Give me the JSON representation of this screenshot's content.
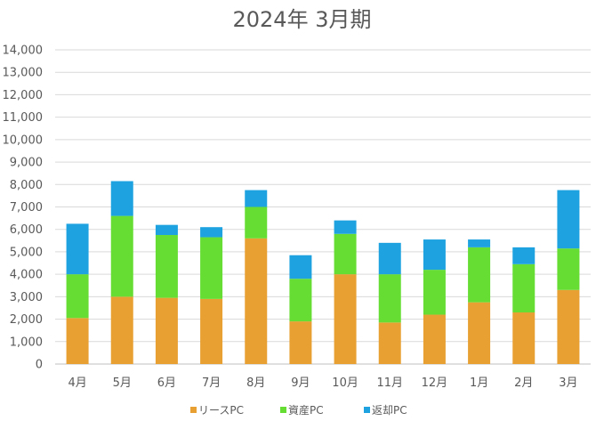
{
  "chart_data": {
    "type": "bar",
    "stacked": true,
    "title": "2024年 3月期",
    "xlabel": "",
    "ylabel": "",
    "ylim": [
      0,
      14000
    ],
    "yticks": [
      0,
      1000,
      2000,
      3000,
      4000,
      5000,
      6000,
      7000,
      8000,
      9000,
      10000,
      11000,
      12000,
      13000,
      14000
    ],
    "ytick_labels": [
      "0",
      "1,000",
      "2,000",
      "3,000",
      "4,000",
      "5,000",
      "6,000",
      "7,000",
      "8,000",
      "9,000",
      "10,000",
      "11,000",
      "12,000",
      "13,000",
      "14,000"
    ],
    "grid": true,
    "legend_position": "bottom",
    "categories": [
      "4月",
      "5月",
      "6月",
      "7月",
      "8月",
      "9月",
      "10月",
      "11月",
      "12月",
      "1月",
      "2月",
      "3月"
    ],
    "series": [
      {
        "name": "リースPC",
        "color": "#e8a033",
        "values": [
          2050,
          3000,
          2950,
          2900,
          5600,
          1900,
          4000,
          1850,
          2200,
          2750,
          2300,
          3300
        ]
      },
      {
        "name": "資産PC",
        "color": "#66dd33",
        "values": [
          1950,
          3600,
          2800,
          2750,
          1400,
          1900,
          1800,
          2150,
          2000,
          2450,
          2150,
          1850
        ]
      },
      {
        "name": "返却PC",
        "color": "#1ea3e0",
        "values": [
          2250,
          1550,
          450,
          450,
          750,
          1050,
          600,
          1400,
          1350,
          350,
          750,
          2600
        ]
      }
    ]
  }
}
